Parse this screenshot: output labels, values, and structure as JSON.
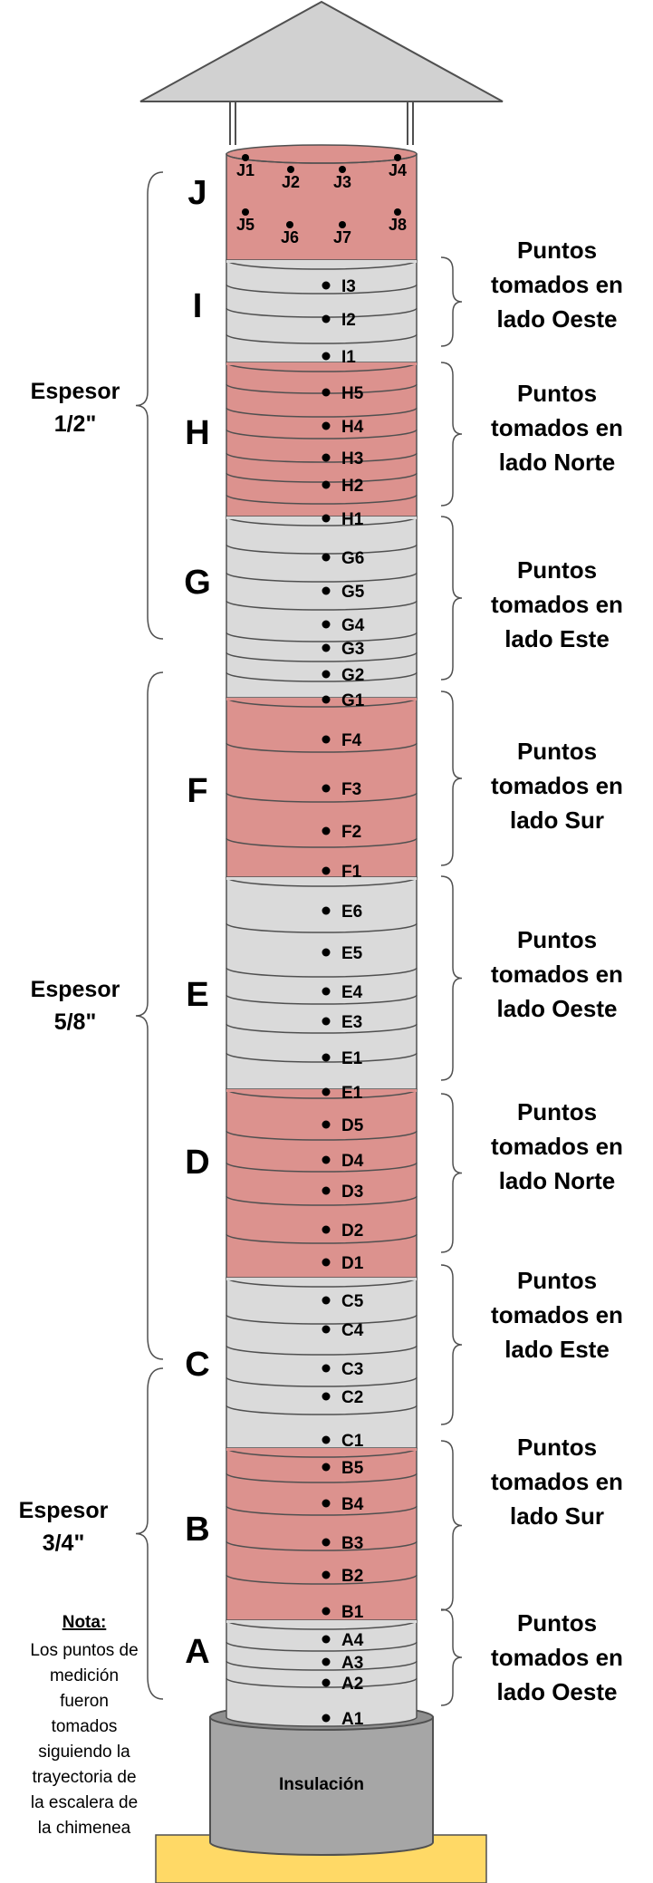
{
  "colors": {
    "pink": "#dc928e",
    "gray": "#dadada",
    "roof": "#d1d1d1",
    "insulation": "#a6a6a6",
    "base": "#ffd966",
    "line": "#505050"
  },
  "insulation_label": "Insulación",
  "sections": [
    {
      "letter": "J",
      "color": "pink"
    },
    {
      "letter": "I",
      "color": "gray"
    },
    {
      "letter": "H",
      "color": "pink"
    },
    {
      "letter": "G",
      "color": "gray"
    },
    {
      "letter": "F",
      "color": "pink"
    },
    {
      "letter": "E",
      "color": "gray"
    },
    {
      "letter": "D",
      "color": "pink"
    },
    {
      "letter": "C",
      "color": "gray"
    },
    {
      "letter": "B",
      "color": "pink"
    },
    {
      "letter": "A",
      "color": "gray"
    }
  ],
  "top_points": [
    "J1",
    "J2",
    "J3",
    "J4",
    "J5",
    "J6",
    "J7",
    "J8"
  ],
  "points": [
    "I3",
    "I2",
    "I1",
    "H5",
    "H4",
    "H3",
    "H2",
    "H1",
    "G6",
    "G5",
    "G4",
    "G3",
    "G2",
    "G1",
    "F4",
    "F3",
    "F2",
    "F1",
    "E6",
    "E5",
    "E4",
    "E3",
    "E1",
    "E1",
    "D5",
    "D4",
    "D3",
    "D2",
    "D1",
    "C5",
    "C4",
    "C3",
    "C2",
    "C1",
    "B5",
    "B4",
    "B3",
    "B2",
    "B1",
    "A4",
    "A3",
    "A2",
    "A1"
  ],
  "side_labels": [
    [
      "Puntos",
      "tomados en",
      "lado Oeste"
    ],
    [
      "Puntos",
      "tomados en",
      "lado Norte"
    ],
    [
      "Puntos",
      "tomados en",
      "lado Este"
    ],
    [
      "Puntos",
      "tomados en",
      "lado Sur"
    ],
    [
      "Puntos",
      "tomados en",
      "lado Oeste"
    ],
    [
      "Puntos",
      "tomados en",
      "lado Norte"
    ],
    [
      "Puntos",
      "tomados en",
      "lado Este"
    ],
    [
      "Puntos",
      "tomados en",
      "lado Sur"
    ],
    [
      "Puntos",
      "tomados en",
      "lado Oeste"
    ]
  ],
  "thickness": [
    [
      "Espesor",
      "1/2\""
    ],
    [
      "Espesor",
      "5/8\""
    ],
    [
      "Espesor",
      "3/4\""
    ]
  ],
  "note": {
    "title": "Nota:",
    "lines": [
      "Los puntos de",
      "medición",
      "fueron",
      "tomados",
      "siguiendo la",
      "trayectoria de",
      "la escalera de",
      "la chimenea"
    ]
  }
}
